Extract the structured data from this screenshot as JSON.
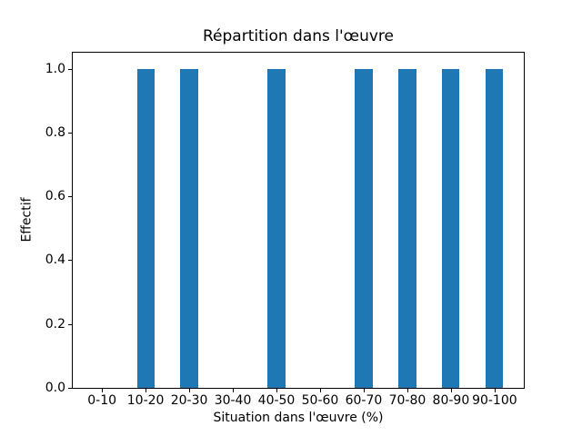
{
  "chart_data": {
    "type": "bar",
    "title": "Répartition dans l'œuvre",
    "xlabel": "Situation dans l'œuvre (%)",
    "ylabel": "Effectif",
    "categories": [
      "0-10",
      "10-20",
      "20-30",
      "30-40",
      "40-50",
      "50-60",
      "60-70",
      "70-80",
      "80-90",
      "90-100"
    ],
    "values": [
      0,
      1,
      1,
      0,
      1,
      0,
      1,
      1,
      1,
      1
    ],
    "yticks": [
      "0.0",
      "0.2",
      "0.4",
      "0.6",
      "0.8",
      "1.0"
    ],
    "ylim": [
      0,
      1.05
    ],
    "xlim": [
      -0.67,
      9.67
    ],
    "bar_width": 0.4,
    "bar_color": "#1f77b4",
    "background_color": "#ffffff",
    "spine_color": "#000000",
    "grid": false,
    "legend": "none"
  }
}
